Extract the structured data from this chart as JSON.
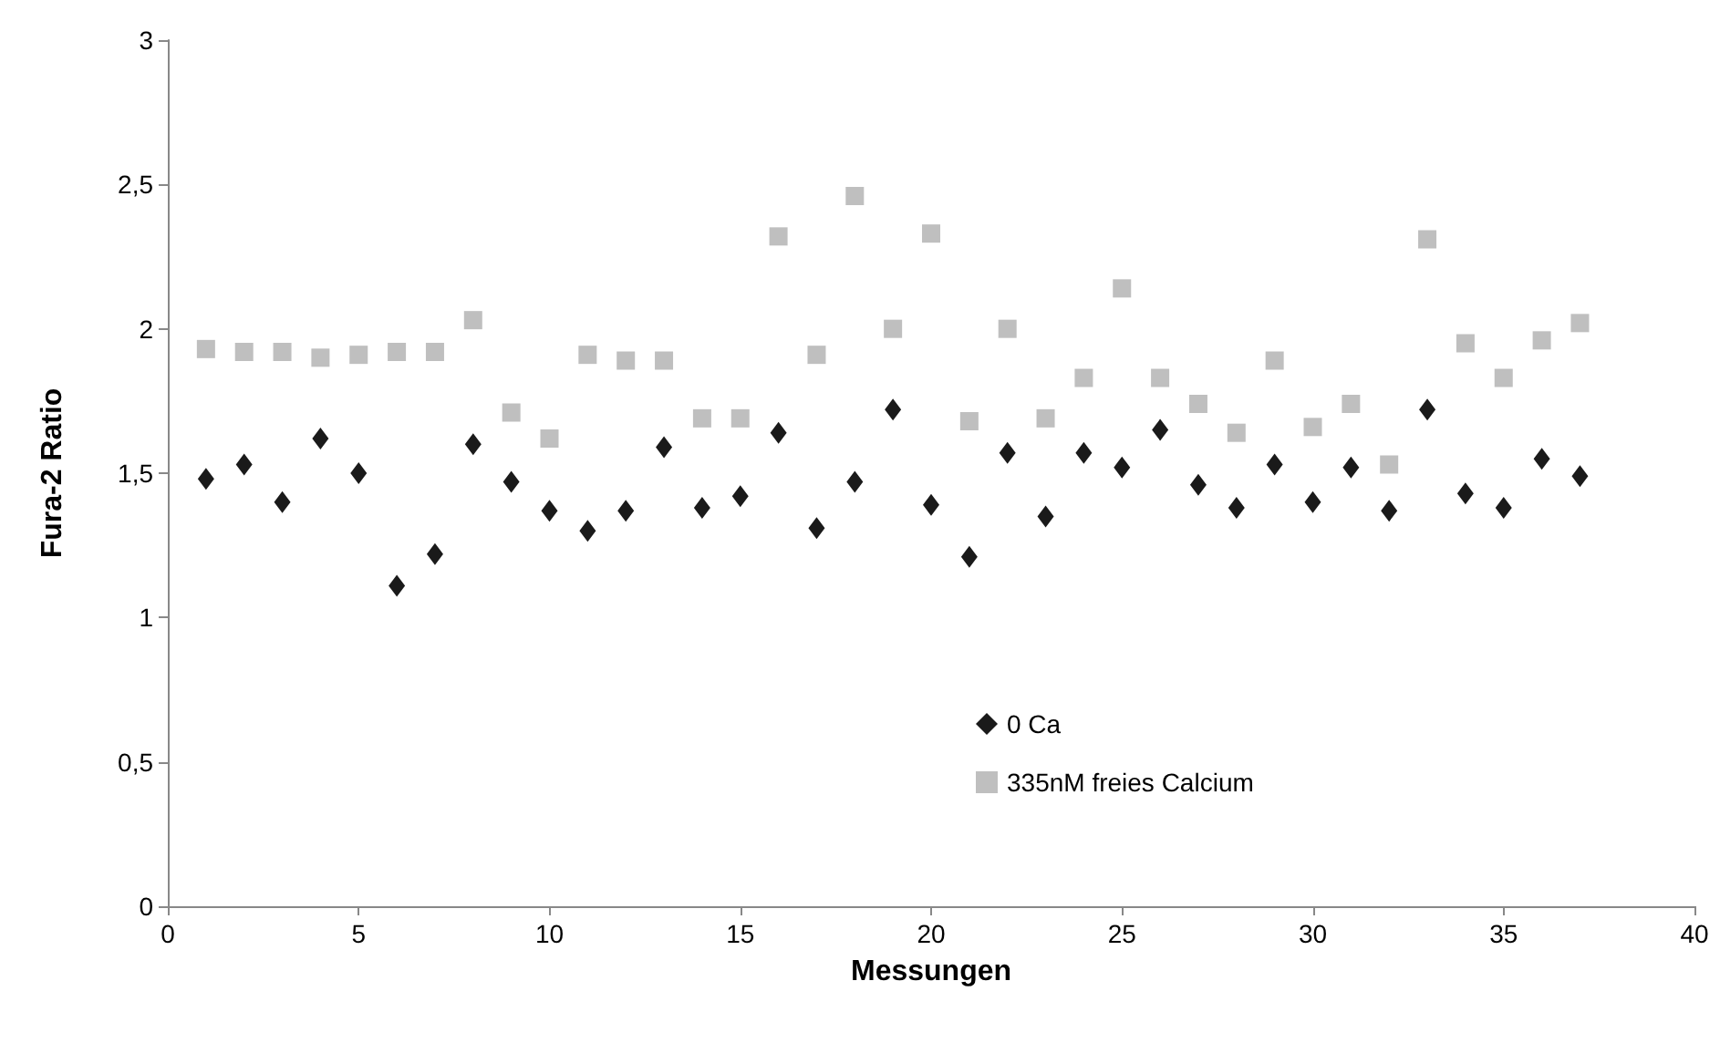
{
  "chart_data": {
    "type": "scatter",
    "xlabel": "Messungen",
    "ylabel": "Fura-2 Ratio",
    "x": [
      1,
      2,
      3,
      4,
      5,
      6,
      7,
      8,
      9,
      10,
      11,
      12,
      13,
      14,
      15,
      16,
      17,
      18,
      19,
      20,
      21,
      22,
      23,
      24,
      25,
      26,
      27,
      28,
      29,
      30,
      31,
      32,
      33,
      34,
      35,
      36,
      37
    ],
    "series": [
      {
        "name": "0 Ca",
        "color": "#1a1a1a",
        "marker": "diamond",
        "values": [
          1.48,
          1.53,
          1.4,
          1.62,
          1.5,
          1.11,
          1.22,
          1.6,
          1.47,
          1.37,
          1.3,
          1.37,
          1.59,
          1.38,
          1.42,
          1.64,
          1.31,
          1.47,
          1.72,
          1.39,
          1.21,
          1.57,
          1.35,
          1.57,
          1.52,
          1.65,
          1.46,
          1.38,
          1.53,
          1.4,
          1.52,
          1.37,
          1.72,
          1.43,
          1.38,
          1.55,
          1.49
        ]
      },
      {
        "name": "335nM freies Calcium",
        "color": "#bfbfbf",
        "marker": "square",
        "values": [
          1.93,
          1.92,
          1.92,
          1.9,
          1.91,
          1.92,
          1.92,
          2.03,
          1.71,
          1.62,
          1.91,
          1.89,
          1.89,
          1.69,
          1.69,
          2.32,
          1.91,
          2.46,
          2.0,
          2.33,
          1.68,
          2.0,
          1.69,
          1.83,
          2.14,
          1.83,
          1.74,
          1.64,
          1.89,
          1.66,
          1.74,
          1.53,
          2.31,
          1.95,
          1.83,
          1.96,
          2.02
        ]
      }
    ],
    "xlim": [
      0,
      40
    ],
    "xticks": [
      0,
      5,
      10,
      15,
      20,
      25,
      30,
      35,
      40
    ],
    "ylim": [
      0,
      3
    ],
    "yticks": [
      0,
      {
        "value": 0.5,
        "label": "0,5"
      },
      1,
      {
        "value": 1.5,
        "label": "1,5"
      },
      2,
      {
        "value": 2.5,
        "label": "2,5"
      },
      3
    ],
    "grid": false,
    "legend": "bottom"
  }
}
